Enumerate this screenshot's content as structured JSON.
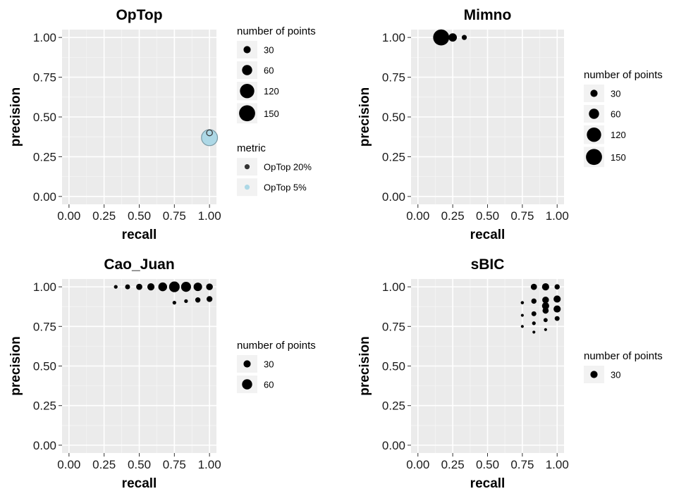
{
  "chart_data": [
    {
      "type": "scatter",
      "title": "OpTop",
      "xlabel": "recall",
      "ylabel": "precision",
      "xlim": [
        0,
        1
      ],
      "ylim": [
        0,
        1
      ],
      "xticks": [
        "0.00",
        "0.25",
        "0.50",
        "0.75",
        "1.00"
      ],
      "yticks": [
        "0.00",
        "0.25",
        "0.50",
        "0.75",
        "1.00"
      ],
      "grid": true,
      "legends": [
        {
          "title": "number of points",
          "entries": [
            {
              "label": "30",
              "size": 30
            },
            {
              "label": "60",
              "size": 60
            },
            {
              "label": "120",
              "size": 120
            },
            {
              "label": "150",
              "size": 150
            }
          ]
        },
        {
          "title": "metric",
          "entries": [
            {
              "label": "OpTop 20%",
              "color": "#333333"
            },
            {
              "label": "OpTop 5%",
              "color": "#add8e6"
            }
          ]
        }
      ],
      "points": [
        {
          "x": 1.0,
          "y": 0.37,
          "size": 150,
          "color": "#add8e6",
          "shape": "filled"
        },
        {
          "x": 1.0,
          "y": 0.37,
          "size": 150,
          "color": "#7a9aa5",
          "shape": "outline"
        },
        {
          "x": 1.0,
          "y": 0.4,
          "size": 20,
          "color": "#333333",
          "shape": "outline"
        }
      ]
    },
    {
      "type": "scatter",
      "title": "Mimno",
      "xlabel": "recall",
      "ylabel": "precision",
      "xlim": [
        0,
        1
      ],
      "ylim": [
        0,
        1
      ],
      "xticks": [
        "0.00",
        "0.25",
        "0.50",
        "0.75",
        "1.00"
      ],
      "yticks": [
        "0.00",
        "0.25",
        "0.50",
        "0.75",
        "1.00"
      ],
      "grid": true,
      "legends": [
        {
          "title": "number of points",
          "entries": [
            {
              "label": "30",
              "size": 30
            },
            {
              "label": "60",
              "size": 60
            },
            {
              "label": "120",
              "size": 120
            },
            {
              "label": "150",
              "size": 150
            }
          ]
        }
      ],
      "points": [
        {
          "x": 0.167,
          "y": 1.0,
          "size": 150,
          "color": "#000000",
          "shape": "filled"
        },
        {
          "x": 0.25,
          "y": 1.0,
          "size": 40,
          "color": "#000000",
          "shape": "filled"
        },
        {
          "x": 0.333,
          "y": 1.0,
          "size": 15,
          "color": "#000000",
          "shape": "filled"
        }
      ]
    },
    {
      "type": "scatter",
      "title": "Cao_Juan",
      "xlabel": "recall",
      "ylabel": "precision",
      "xlim": [
        0,
        1
      ],
      "ylim": [
        0,
        1
      ],
      "xticks": [
        "0.00",
        "0.25",
        "0.50",
        "0.75",
        "1.00"
      ],
      "yticks": [
        "0.00",
        "0.25",
        "0.50",
        "0.75",
        "1.00"
      ],
      "grid": true,
      "legends": [
        {
          "title": "number of points",
          "entries": [
            {
              "label": "30",
              "size": 30
            },
            {
              "label": "60",
              "size": 60
            }
          ]
        }
      ],
      "points": [
        {
          "x": 0.333,
          "y": 1.0,
          "size": 8,
          "color": "#000000",
          "shape": "filled"
        },
        {
          "x": 0.417,
          "y": 1.0,
          "size": 14,
          "color": "#000000",
          "shape": "filled"
        },
        {
          "x": 0.5,
          "y": 1.0,
          "size": 22,
          "color": "#000000",
          "shape": "filled"
        },
        {
          "x": 0.583,
          "y": 1.0,
          "size": 30,
          "color": "#000000",
          "shape": "filled"
        },
        {
          "x": 0.667,
          "y": 1.0,
          "size": 45,
          "color": "#000000",
          "shape": "filled"
        },
        {
          "x": 0.75,
          "y": 1.0,
          "size": 66,
          "color": "#000000",
          "shape": "filled"
        },
        {
          "x": 0.833,
          "y": 1.0,
          "size": 58,
          "color": "#000000",
          "shape": "filled"
        },
        {
          "x": 0.917,
          "y": 1.0,
          "size": 42,
          "color": "#000000",
          "shape": "filled"
        },
        {
          "x": 1.0,
          "y": 1.0,
          "size": 26,
          "color": "#000000",
          "shape": "filled"
        },
        {
          "x": 0.75,
          "y": 0.9,
          "size": 8,
          "color": "#000000",
          "shape": "filled"
        },
        {
          "x": 0.833,
          "y": 0.91,
          "size": 8,
          "color": "#000000",
          "shape": "filled"
        },
        {
          "x": 0.917,
          "y": 0.917,
          "size": 16,
          "color": "#000000",
          "shape": "filled"
        },
        {
          "x": 1.0,
          "y": 0.923,
          "size": 20,
          "color": "#000000",
          "shape": "filled"
        }
      ]
    },
    {
      "type": "scatter",
      "title": "sBIC",
      "xlabel": "recall",
      "ylabel": "precision",
      "xlim": [
        0,
        1
      ],
      "ylim": [
        0,
        1
      ],
      "xticks": [
        "0.00",
        "0.25",
        "0.50",
        "0.75",
        "1.00"
      ],
      "yticks": [
        "0.00",
        "0.25",
        "0.50",
        "0.75",
        "1.00"
      ],
      "grid": true,
      "legends": [
        {
          "title": "number of points",
          "entries": [
            {
              "label": "30",
              "size": 30
            }
          ]
        }
      ],
      "points": [
        {
          "x": 0.833,
          "y": 1.0,
          "size": 22,
          "color": "#000000",
          "shape": "filled"
        },
        {
          "x": 0.917,
          "y": 1.0,
          "size": 30,
          "color": "#000000",
          "shape": "filled"
        },
        {
          "x": 1.0,
          "y": 1.0,
          "size": 16,
          "color": "#000000",
          "shape": "filled"
        },
        {
          "x": 0.75,
          "y": 0.9,
          "size": 6,
          "color": "#000000",
          "shape": "filled"
        },
        {
          "x": 0.833,
          "y": 0.91,
          "size": 16,
          "color": "#000000",
          "shape": "filled"
        },
        {
          "x": 0.917,
          "y": 0.917,
          "size": 26,
          "color": "#000000",
          "shape": "filled"
        },
        {
          "x": 1.0,
          "y": 0.923,
          "size": 30,
          "color": "#000000",
          "shape": "filled"
        },
        {
          "x": 0.917,
          "y": 0.88,
          "size": 30,
          "color": "#000000",
          "shape": "filled"
        },
        {
          "x": 1.0,
          "y": 0.86,
          "size": 30,
          "color": "#000000",
          "shape": "filled"
        },
        {
          "x": 0.75,
          "y": 0.82,
          "size": 5,
          "color": "#000000",
          "shape": "filled"
        },
        {
          "x": 0.833,
          "y": 0.83,
          "size": 14,
          "color": "#000000",
          "shape": "filled"
        },
        {
          "x": 0.917,
          "y": 0.85,
          "size": 22,
          "color": "#000000",
          "shape": "filled"
        },
        {
          "x": 1.0,
          "y": 0.8,
          "size": 14,
          "color": "#000000",
          "shape": "filled"
        },
        {
          "x": 0.917,
          "y": 0.79,
          "size": 10,
          "color": "#000000",
          "shape": "filled"
        },
        {
          "x": 0.75,
          "y": 0.75,
          "size": 5,
          "color": "#000000",
          "shape": "filled"
        },
        {
          "x": 0.833,
          "y": 0.77,
          "size": 8,
          "color": "#000000",
          "shape": "filled"
        },
        {
          "x": 0.917,
          "y": 0.73,
          "size": 5,
          "color": "#000000",
          "shape": "filled"
        },
        {
          "x": 0.833,
          "y": 0.714,
          "size": 5,
          "color": "#000000",
          "shape": "filled"
        }
      ]
    }
  ]
}
